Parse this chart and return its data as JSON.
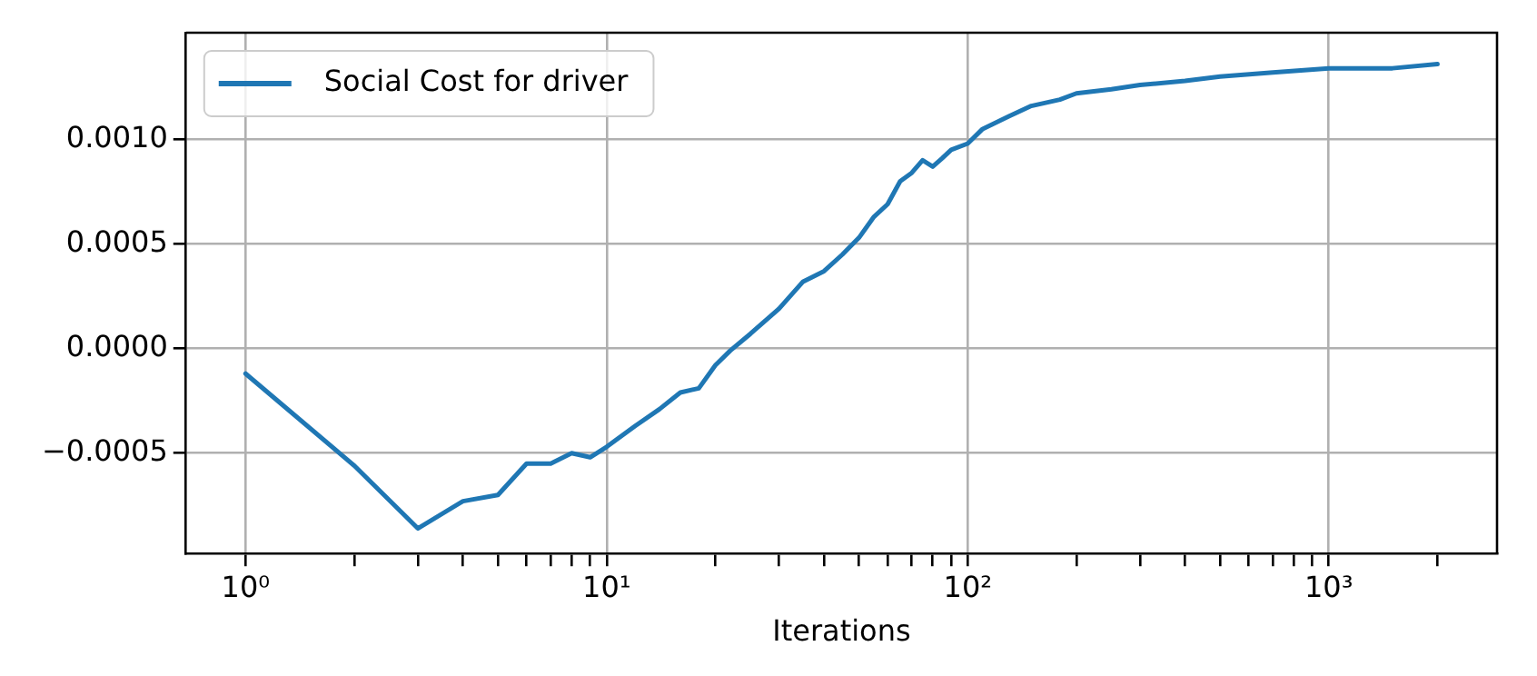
{
  "chart_data": {
    "type": "line",
    "xlabel": "Iterations",
    "log": "x",
    "grid": true,
    "legend": "top left",
    "marker": "none",
    "line_style": "solid",
    "xlim": [
      0.684,
      2924
    ],
    "ylim": [
      -0.00098,
      0.00151
    ],
    "xticks": [
      {
        "value": 1,
        "label": "10⁰"
      },
      {
        "value": 2,
        "label": null
      },
      {
        "value": 3,
        "label": null
      },
      {
        "value": 4,
        "label": null
      },
      {
        "value": 5,
        "label": null
      },
      {
        "value": 6,
        "label": null
      },
      {
        "value": 7,
        "label": null
      },
      {
        "value": 8,
        "label": null
      },
      {
        "value": 9,
        "label": null
      },
      {
        "value": 10,
        "label": "10¹"
      },
      {
        "value": 20,
        "label": null
      },
      {
        "value": 30,
        "label": null
      },
      {
        "value": 40,
        "label": null
      },
      {
        "value": 50,
        "label": null
      },
      {
        "value": 60,
        "label": null
      },
      {
        "value": 70,
        "label": null
      },
      {
        "value": 80,
        "label": null
      },
      {
        "value": 90,
        "label": null
      },
      {
        "value": 100,
        "label": "10²"
      },
      {
        "value": 200,
        "label": null
      },
      {
        "value": 300,
        "label": null
      },
      {
        "value": 400,
        "label": null
      },
      {
        "value": 500,
        "label": null
      },
      {
        "value": 600,
        "label": null
      },
      {
        "value": 700,
        "label": null
      },
      {
        "value": 800,
        "label": null
      },
      {
        "value": 900,
        "label": null
      },
      {
        "value": 1000,
        "label": "10³"
      },
      {
        "value": 2000,
        "label": null
      }
    ],
    "yticks": [
      {
        "value": -0.0005,
        "label": "−0.0005"
      },
      {
        "value": 0,
        "label": "0.0000"
      },
      {
        "value": 0.0005,
        "label": "0.0005"
      },
      {
        "value": 0.001,
        "label": "0.0010"
      }
    ],
    "series": [
      {
        "name": "Social Cost for driver",
        "color": "#1f77b4",
        "x": [
          1,
          2,
          3,
          4,
          5,
          6,
          7,
          8,
          9,
          10,
          12,
          14,
          16,
          18,
          20,
          22,
          25,
          30,
          35,
          40,
          45,
          50,
          55,
          60,
          65,
          70,
          75,
          80,
          85,
          90,
          100,
          110,
          130,
          150,
          180,
          200,
          250,
          300,
          400,
          500,
          700,
          1000,
          1500,
          2000
        ],
        "values": [
          -0.00012,
          -0.00056,
          -0.00086,
          -0.00073,
          -0.0007,
          -0.00055,
          -0.00055,
          -0.0005,
          -0.00052,
          -0.00047,
          -0.00037,
          -0.00029,
          -0.00021,
          -0.00019,
          -8e-05,
          -1e-05,
          7e-05,
          0.00019,
          0.00032,
          0.00037,
          0.00045,
          0.00053,
          0.00063,
          0.00069,
          0.0008,
          0.00084,
          0.0009,
          0.00087,
          0.00091,
          0.00095,
          0.00098,
          0.00105,
          0.00111,
          0.00116,
          0.00119,
          0.00122,
          0.00124,
          0.00126,
          0.00128,
          0.0013,
          0.00132,
          0.00134,
          0.00134,
          0.00136
        ]
      }
    ]
  }
}
